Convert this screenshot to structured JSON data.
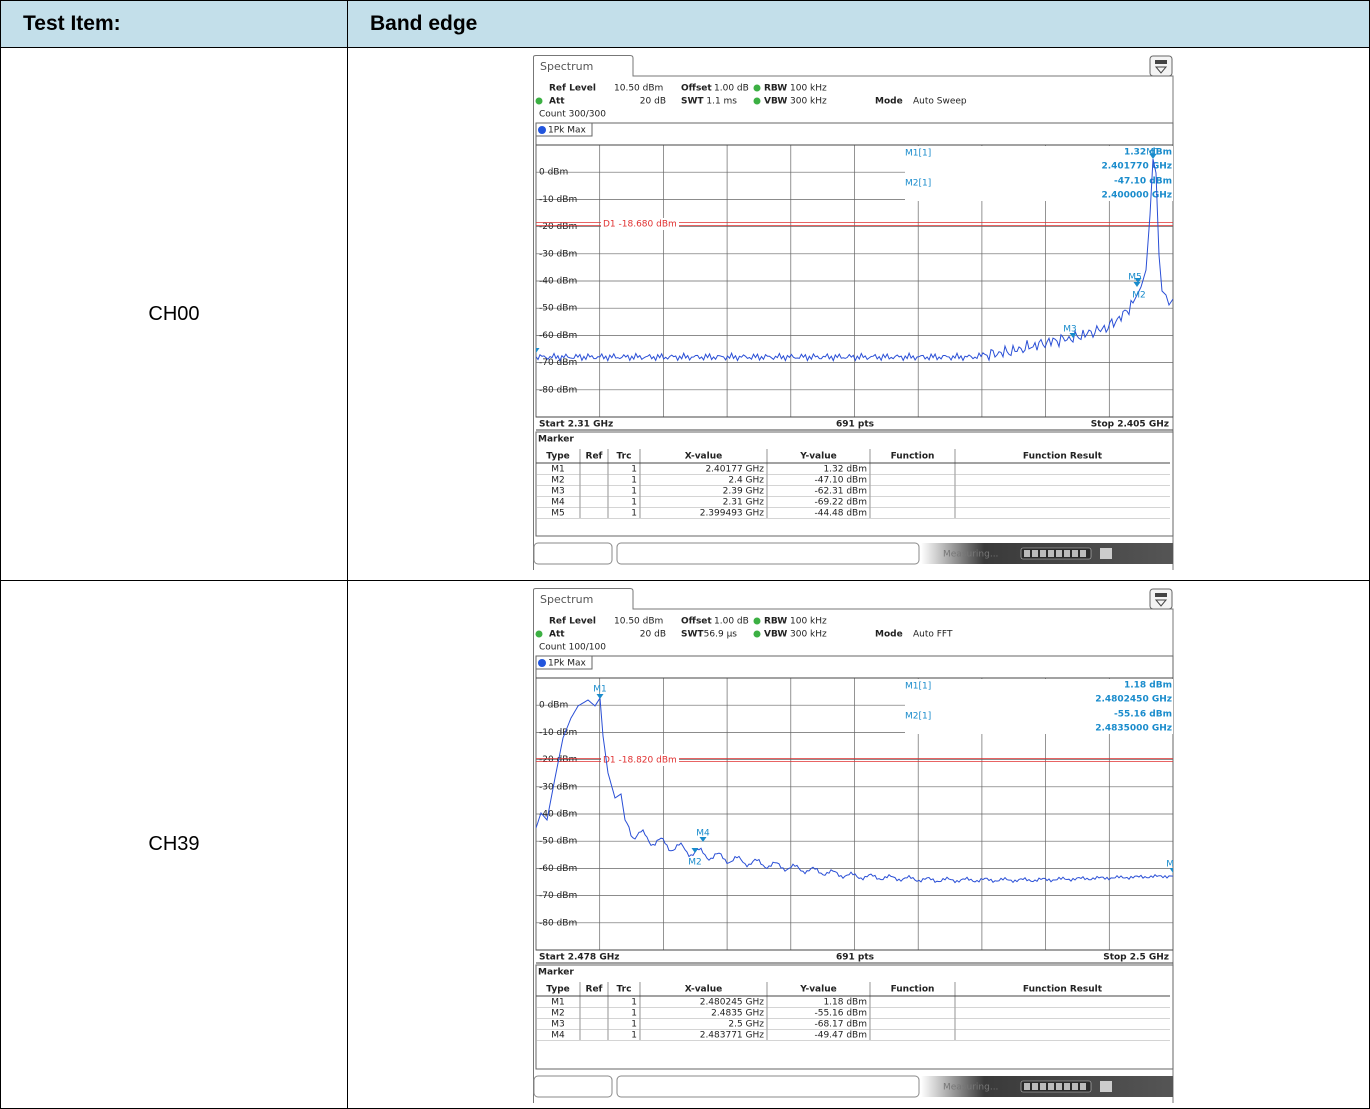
{
  "table": {
    "header": [
      "Test Item:",
      "Band edge"
    ],
    "rows": [
      {
        "item": "CH00",
        "screen": {
          "tab": "Spectrum",
          "settings": [
            [
              {
                "label": "Ref Level",
                "value": "10.50 dBm"
              },
              {
                "label": "Offset",
                "value": "1.00 dB"
              },
              {
                "label": "RBW",
                "value": "100 kHz"
              }
            ],
            [
              {
                "label": "Att",
                "value": "20 dB"
              },
              {
                "label": "SWT",
                "value": "1.1 ms"
              },
              {
                "label": "VBW",
                "value": "300 kHz"
              },
              {
                "label": "Mode",
                "value": "Auto Sweep"
              }
            ]
          ],
          "count": "Count 300/300",
          "trace": "1Pk Max",
          "y_labels": [
            "0 dBm",
            "-10 dBm",
            "-20 dBm",
            "-30 dBm",
            "-40 dBm",
            "-50 dBm",
            "-60 dBm",
            "-70 dBm",
            "-80 dBm"
          ],
          "display_line": "D1 -18.680 dBm",
          "readout": [
            [
              "M1[1]",
              "1.32 dBm",
              "2.401770 GHz"
            ],
            [
              "M2[1]",
              "-47.10 dBm",
              "2.400000 GHz"
            ]
          ],
          "plot_markers": [
            "M1",
            "M2",
            "M3",
            "M4",
            "M5"
          ],
          "start": "Start 2.31 GHz",
          "points": "691 pts",
          "stop": "Stop 2.405 GHz",
          "marker_title": "Marker",
          "marker_columns": [
            "Type",
            "Ref",
            "Trc",
            "X-value",
            "Y-value",
            "Function",
            "Function Result"
          ],
          "marker_rows": [
            [
              "M1",
              "1",
              "2.40177 GHz",
              "1.32 dBm"
            ],
            [
              "M2",
              "1",
              "2.4 GHz",
              "-47.10 dBm"
            ],
            [
              "M3",
              "1",
              "2.39 GHz",
              "-62.31 dBm"
            ],
            [
              "M4",
              "1",
              "2.31 GHz",
              "-69.22 dBm"
            ],
            [
              "M5",
              "1",
              "2.399493 GHz",
              "-44.48 dBm"
            ]
          ],
          "status": "Measuring..."
        }
      },
      {
        "item": "CH39",
        "screen": {
          "tab": "Spectrum",
          "settings": [
            [
              {
                "label": "Ref Level",
                "value": "10.50 dBm"
              },
              {
                "label": "Offset",
                "value": "1.00 dB"
              },
              {
                "label": "RBW",
                "value": "100 kHz"
              }
            ],
            [
              {
                "label": "Att",
                "value": "20 dB"
              },
              {
                "label": "SWT",
                "value": "56.9 µs"
              },
              {
                "label": "VBW",
                "value": "300 kHz"
              },
              {
                "label": "Mode",
                "value": "Auto FFT"
              }
            ]
          ],
          "count": "Count 100/100",
          "trace": "1Pk Max",
          "y_labels": [
            "0 dBm",
            "-10 dBm",
            "-20 dBm",
            "-30 dBm",
            "-40 dBm",
            "-50 dBm",
            "-60 dBm",
            "-70 dBm",
            "-80 dBm"
          ],
          "display_line": "D1 -18.820 dBm",
          "readout": [
            [
              "M1[1]",
              "1.18 dBm",
              "2.4802450 GHz"
            ],
            [
              "M2[1]",
              "-55.16 dBm",
              "2.4835000 GHz"
            ]
          ],
          "plot_markers": [
            "M1",
            "M2",
            "M3",
            "M4"
          ],
          "start": "Start 2.478 GHz",
          "points": "691 pts",
          "stop": "Stop 2.5 GHz",
          "marker_title": "Marker",
          "marker_columns": [
            "Type",
            "Ref",
            "Trc",
            "X-value",
            "Y-value",
            "Function",
            "Function Result"
          ],
          "marker_rows": [
            [
              "M1",
              "1",
              "2.480245 GHz",
              "1.18 dBm"
            ],
            [
              "M2",
              "1",
              "2.4835 GHz",
              "-55.16 dBm"
            ],
            [
              "M3",
              "1",
              "2.5 GHz",
              "-68.17 dBm"
            ],
            [
              "M4",
              "1",
              "2.483771 GHz",
              "-49.47 dBm"
            ]
          ],
          "status": "Measuring..."
        }
      }
    ]
  }
}
